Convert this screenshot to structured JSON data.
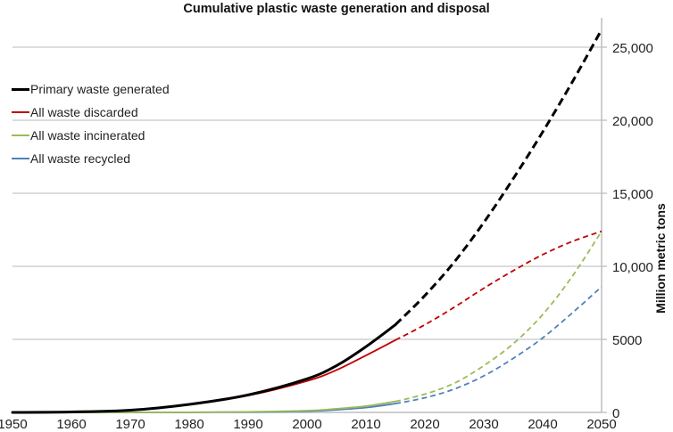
{
  "chart_data": {
    "type": "line",
    "title": "Cumulative plastic waste generation and disposal",
    "xlabel": "",
    "ylabel": "Million metric tons",
    "xlim": [
      1950,
      2050
    ],
    "ylim": [
      0,
      27000
    ],
    "x_ticks": [
      1950,
      1960,
      1970,
      1980,
      1990,
      2000,
      2010,
      2020,
      2030,
      2040,
      2050
    ],
    "y_ticks": [
      0,
      5000,
      10000,
      15000,
      20000,
      25000
    ],
    "y_tick_labels": [
      "0",
      "5000",
      "10,000",
      "15,000",
      "20,000",
      "25,000"
    ],
    "y_axis_side": "right",
    "grid": "horizontal",
    "legend_position": "top-left",
    "projection_start_year": 2015,
    "projection_style": "dashed",
    "series": [
      {
        "name": "Primary waste generated",
        "color": "#000000",
        "x": [
          1950,
          1960,
          1970,
          1980,
          1990,
          2000,
          2005,
          2010,
          2015,
          2020,
          2025,
          2030,
          2035,
          2040,
          2045,
          2050
        ],
        "values": [
          0,
          30,
          150,
          550,
          1200,
          2300,
          3200,
          4500,
          6000,
          8000,
          10300,
          13000,
          16000,
          19200,
          22600,
          26200
        ]
      },
      {
        "name": "All waste discarded",
        "color": "#c00000",
        "x": [
          1950,
          1960,
          1970,
          1980,
          1990,
          2000,
          2005,
          2010,
          2015,
          2020,
          2025,
          2030,
          2035,
          2040,
          2045,
          2050
        ],
        "values": [
          0,
          30,
          150,
          530,
          1150,
          2150,
          2900,
          3900,
          4950,
          6000,
          7200,
          8500,
          9700,
          10800,
          11700,
          12400
        ]
      },
      {
        "name": "All waste incinerated",
        "color": "#9bbb59",
        "x": [
          1950,
          1960,
          1970,
          1980,
          1990,
          2000,
          2005,
          2010,
          2015,
          2020,
          2025,
          2030,
          2035,
          2040,
          2045,
          2050
        ],
        "values": [
          0,
          0,
          0,
          10,
          40,
          120,
          250,
          430,
          750,
          1250,
          2000,
          3200,
          4700,
          6700,
          9300,
          12400
        ]
      },
      {
        "name": "All waste recycled",
        "color": "#4f81bd",
        "x": [
          1950,
          1960,
          1970,
          1980,
          1990,
          2000,
          2005,
          2010,
          2015,
          2020,
          2025,
          2030,
          2035,
          2040,
          2045,
          2050
        ],
        "values": [
          0,
          0,
          0,
          5,
          20,
          80,
          180,
          330,
          600,
          1000,
          1600,
          2500,
          3700,
          5100,
          6800,
          8600
        ]
      }
    ]
  }
}
